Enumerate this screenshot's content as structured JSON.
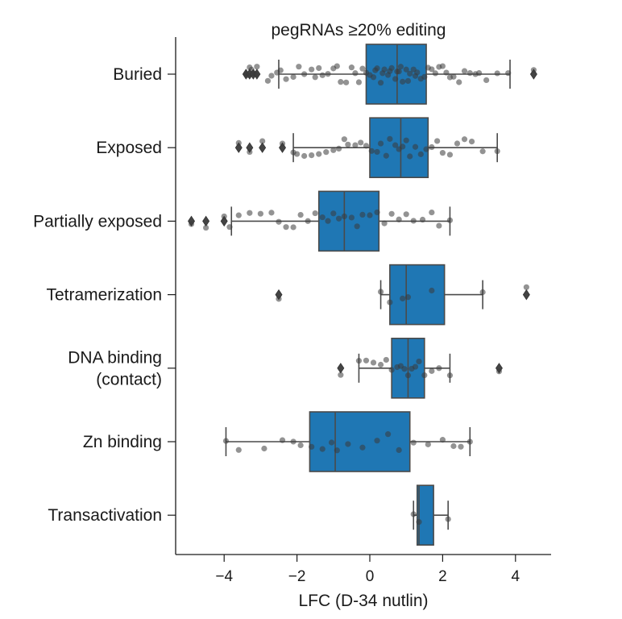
{
  "chart_data": {
    "type": "box",
    "title": "pegRNAs ≥20% editing",
    "xlabel": "LFC (D-34 nutlin)",
    "xlim": [
      -5.4,
      5.0
    ],
    "xticks": [
      -4,
      -2,
      0,
      2,
      4
    ],
    "xtick_labels": [
      "−4",
      "−2",
      "0",
      "2",
      "4"
    ],
    "box_color": "#1f77b4",
    "grid": false,
    "categories": [
      {
        "label": [
          "Buried"
        ],
        "whisker_low": -2.5,
        "q1": -0.1,
        "median": 0.75,
        "q3": 1.55,
        "whisker_high": 3.85,
        "outliers": [
          -3.4,
          -3.3,
          -3.2,
          -3.1,
          4.5
        ],
        "points": [
          -3.4,
          -3.35,
          -3.3,
          -3.25,
          -3.2,
          -3.15,
          -3.1,
          -2.8,
          -2.7,
          -2.55,
          -2.45,
          -2.3,
          -2.1,
          -1.95,
          -1.8,
          -1.6,
          -1.5,
          -1.4,
          -1.3,
          -1.15,
          -1.0,
          -0.9,
          -0.8,
          -0.65,
          -0.5,
          -0.4,
          -0.3,
          -0.2,
          -0.1,
          0.0,
          0.1,
          0.15,
          0.2,
          0.3,
          0.35,
          0.4,
          0.5,
          0.55,
          0.6,
          0.7,
          0.75,
          0.8,
          0.85,
          0.9,
          1.0,
          1.05,
          1.1,
          1.2,
          1.25,
          1.3,
          1.4,
          1.5,
          1.6,
          1.7,
          1.8,
          1.9,
          2.0,
          2.1,
          2.2,
          2.3,
          2.45,
          2.6,
          2.75,
          2.9,
          3.0,
          3.2,
          3.5,
          3.8,
          4.5
        ]
      },
      {
        "label": [
          "Exposed"
        ],
        "whisker_low": -2.1,
        "q1": 0.0,
        "median": 0.85,
        "q3": 1.6,
        "whisker_high": 3.5,
        "outliers": [
          -3.6,
          -3.3,
          -2.95,
          -2.4
        ],
        "points": [
          -3.6,
          -3.3,
          -2.95,
          -2.4,
          -2.1,
          -2.0,
          -1.8,
          -1.6,
          -1.4,
          -1.2,
          -1.0,
          -0.85,
          -0.7,
          -0.6,
          -0.4,
          -0.25,
          -0.1,
          0.05,
          0.2,
          0.3,
          0.45,
          0.55,
          0.7,
          0.8,
          0.9,
          1.0,
          1.1,
          1.25,
          1.4,
          1.55,
          1.7,
          1.85,
          2.0,
          2.2,
          2.4,
          2.6,
          2.8,
          3.1,
          3.5
        ]
      },
      {
        "label": [
          "Partially exposed"
        ],
        "whisker_low": -3.8,
        "q1": -1.4,
        "median": -0.7,
        "q3": 0.25,
        "whisker_high": 2.2,
        "outliers": [
          -4.9,
          -4.5,
          -4.0
        ],
        "points": [
          -4.9,
          -4.5,
          -4.0,
          -3.85,
          -3.6,
          -3.3,
          -3.0,
          -2.7,
          -2.5,
          -2.3,
          -2.1,
          -1.9,
          -1.7,
          -1.5,
          -1.3,
          -1.15,
          -1.0,
          -0.85,
          -0.7,
          -0.5,
          -0.35,
          -0.2,
          0.0,
          0.2,
          0.4,
          0.6,
          0.8,
          1.0,
          1.2,
          1.45,
          1.7,
          1.9,
          2.2
        ]
      },
      {
        "label": [
          "Tetramerization"
        ],
        "whisker_low": 0.3,
        "q1": 0.55,
        "median": 1.0,
        "q3": 2.05,
        "whisker_high": 3.1,
        "outliers": [
          -2.5,
          4.3
        ],
        "points": [
          -2.5,
          0.3,
          0.55,
          0.9,
          1.05,
          1.7,
          3.1,
          4.3
        ]
      },
      {
        "label": [
          "DNA binding",
          "(contact)"
        ],
        "whisker_low": -0.3,
        "q1": 0.6,
        "median": 1.05,
        "q3": 1.5,
        "whisker_high": 2.2,
        "outliers": [
          -0.8,
          3.55
        ],
        "points": [
          -0.8,
          -0.3,
          -0.1,
          0.1,
          0.3,
          0.45,
          0.6,
          0.75,
          0.85,
          0.95,
          1.05,
          1.15,
          1.25,
          1.35,
          1.5,
          1.7,
          1.9,
          2.2,
          3.55
        ]
      },
      {
        "label": [
          "Zn binding"
        ],
        "whisker_low": -3.95,
        "q1": -1.65,
        "median": -0.95,
        "q3": 1.1,
        "whisker_high": 2.75,
        "outliers": [],
        "points": [
          -3.95,
          -3.6,
          -2.9,
          -2.4,
          -2.1,
          -1.9,
          -1.6,
          -1.3,
          -1.05,
          -0.9,
          -0.6,
          -0.2,
          0.2,
          0.5,
          0.8,
          1.2,
          1.6,
          2.0,
          2.3,
          2.5,
          2.75
        ]
      },
      {
        "label": [
          "Transactivation"
        ],
        "whisker_low": 1.2,
        "q1": 1.3,
        "median": 1.35,
        "q3": 1.75,
        "whisker_high": 2.15,
        "outliers": [],
        "points": [
          1.2,
          1.35,
          2.15
        ]
      }
    ]
  }
}
